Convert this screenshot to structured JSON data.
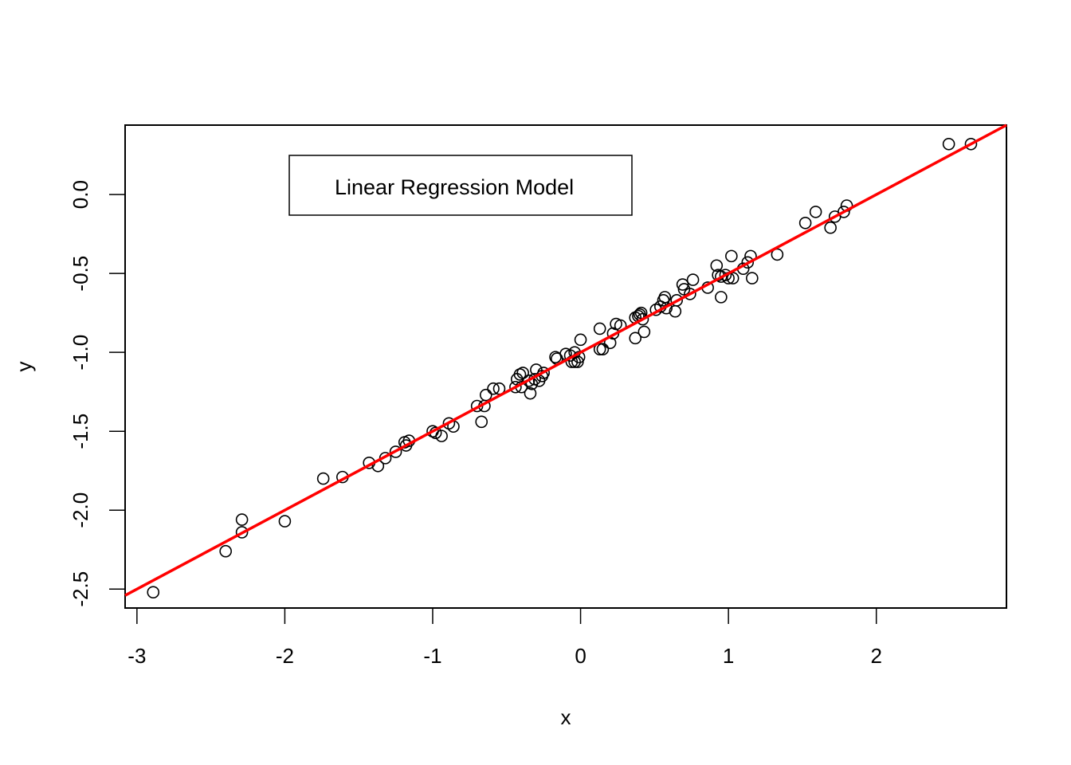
{
  "chart_data": {
    "type": "scatter",
    "title": "",
    "xlabel": "x",
    "ylabel": "y",
    "xlim": [
      -3.08,
      2.88
    ],
    "ylim": [
      -2.62,
      0.44
    ],
    "xticks": [
      -3,
      -2,
      -1,
      0,
      1,
      2
    ],
    "xtick_labels": [
      "-3",
      "-2",
      "-1",
      "0",
      "1",
      "2"
    ],
    "yticks": [
      -2.5,
      -2.0,
      -1.5,
      -1.0,
      -0.5,
      0.0
    ],
    "ytick_labels": [
      "-2.5",
      "-2.0",
      "-1.5",
      "-1.0",
      "-0.5",
      "0.0"
    ],
    "grid": false,
    "legend": {
      "text": "Linear Regression Model",
      "placement": "top-left"
    },
    "regression_line": {
      "intercept": -1.0,
      "slope": 0.5,
      "color": "#ff0000"
    },
    "point_style": {
      "shape": "open-circle",
      "color": "#000000"
    },
    "points": [
      [
        -2.89,
        -2.52
      ],
      [
        -2.4,
        -2.26
      ],
      [
        -2.29,
        -2.06
      ],
      [
        -2.29,
        -2.14
      ],
      [
        -2.0,
        -2.07
      ],
      [
        -1.74,
        -1.8
      ],
      [
        -1.61,
        -1.79
      ],
      [
        -1.43,
        -1.7
      ],
      [
        -1.37,
        -1.72
      ],
      [
        -1.32,
        -1.67
      ],
      [
        -1.25,
        -1.63
      ],
      [
        -1.19,
        -1.57
      ],
      [
        -1.18,
        -1.59
      ],
      [
        -1.16,
        -1.56
      ],
      [
        -1.0,
        -1.5
      ],
      [
        -0.98,
        -1.51
      ],
      [
        -0.94,
        -1.53
      ],
      [
        -0.89,
        -1.45
      ],
      [
        -0.86,
        -1.47
      ],
      [
        -0.7,
        -1.34
      ],
      [
        -0.67,
        -1.44
      ],
      [
        -0.65,
        -1.34
      ],
      [
        -0.64,
        -1.27
      ],
      [
        -0.59,
        -1.23
      ],
      [
        -0.55,
        -1.23
      ],
      [
        -0.44,
        -1.22
      ],
      [
        -0.43,
        -1.17
      ],
      [
        -0.41,
        -1.14
      ],
      [
        -0.4,
        -1.22
      ],
      [
        -0.39,
        -1.13
      ],
      [
        -0.35,
        -1.18
      ],
      [
        -0.34,
        -1.26
      ],
      [
        -0.33,
        -1.2
      ],
      [
        -0.31,
        -1.17
      ],
      [
        -0.3,
        -1.11
      ],
      [
        -0.28,
        -1.18
      ],
      [
        -0.26,
        -1.15
      ],
      [
        -0.25,
        -1.13
      ],
      [
        -0.17,
        -1.03
      ],
      [
        -0.16,
        -1.04
      ],
      [
        -0.1,
        -1.01
      ],
      [
        -0.07,
        -1.02
      ],
      [
        -0.06,
        -1.06
      ],
      [
        -0.04,
        -1.0
      ],
      [
        -0.04,
        -1.06
      ],
      [
        -0.02,
        -1.06
      ],
      [
        -0.01,
        -1.03
      ],
      [
        0.0,
        -0.92
      ],
      [
        0.13,
        -0.98
      ],
      [
        0.13,
        -0.85
      ],
      [
        0.15,
        -0.98
      ],
      [
        0.2,
        -0.94
      ],
      [
        0.22,
        -0.88
      ],
      [
        0.24,
        -0.82
      ],
      [
        0.27,
        -0.83
      ],
      [
        0.37,
        -0.91
      ],
      [
        0.37,
        -0.78
      ],
      [
        0.39,
        -0.77
      ],
      [
        0.4,
        -0.76
      ],
      [
        0.41,
        -0.75
      ],
      [
        0.42,
        -0.79
      ],
      [
        0.43,
        -0.87
      ],
      [
        0.51,
        -0.73
      ],
      [
        0.54,
        -0.71
      ],
      [
        0.56,
        -0.67
      ],
      [
        0.57,
        -0.65
      ],
      [
        0.58,
        -0.72
      ],
      [
        0.64,
        -0.74
      ],
      [
        0.65,
        -0.67
      ],
      [
        0.69,
        -0.57
      ],
      [
        0.7,
        -0.6
      ],
      [
        0.74,
        -0.63
      ],
      [
        0.76,
        -0.54
      ],
      [
        0.86,
        -0.59
      ],
      [
        0.92,
        -0.45
      ],
      [
        0.93,
        -0.51
      ],
      [
        0.95,
        -0.52
      ],
      [
        0.95,
        -0.65
      ],
      [
        0.98,
        -0.51
      ],
      [
        1.0,
        -0.53
      ],
      [
        1.02,
        -0.39
      ],
      [
        1.03,
        -0.53
      ],
      [
        1.1,
        -0.47
      ],
      [
        1.13,
        -0.43
      ],
      [
        1.15,
        -0.39
      ],
      [
        1.16,
        -0.53
      ],
      [
        1.33,
        -0.38
      ],
      [
        1.52,
        -0.18
      ],
      [
        1.59,
        -0.11
      ],
      [
        1.69,
        -0.21
      ],
      [
        1.72,
        -0.14
      ],
      [
        1.78,
        -0.11
      ],
      [
        1.8,
        -0.07
      ],
      [
        2.49,
        0.32
      ],
      [
        2.64,
        0.32
      ]
    ]
  }
}
